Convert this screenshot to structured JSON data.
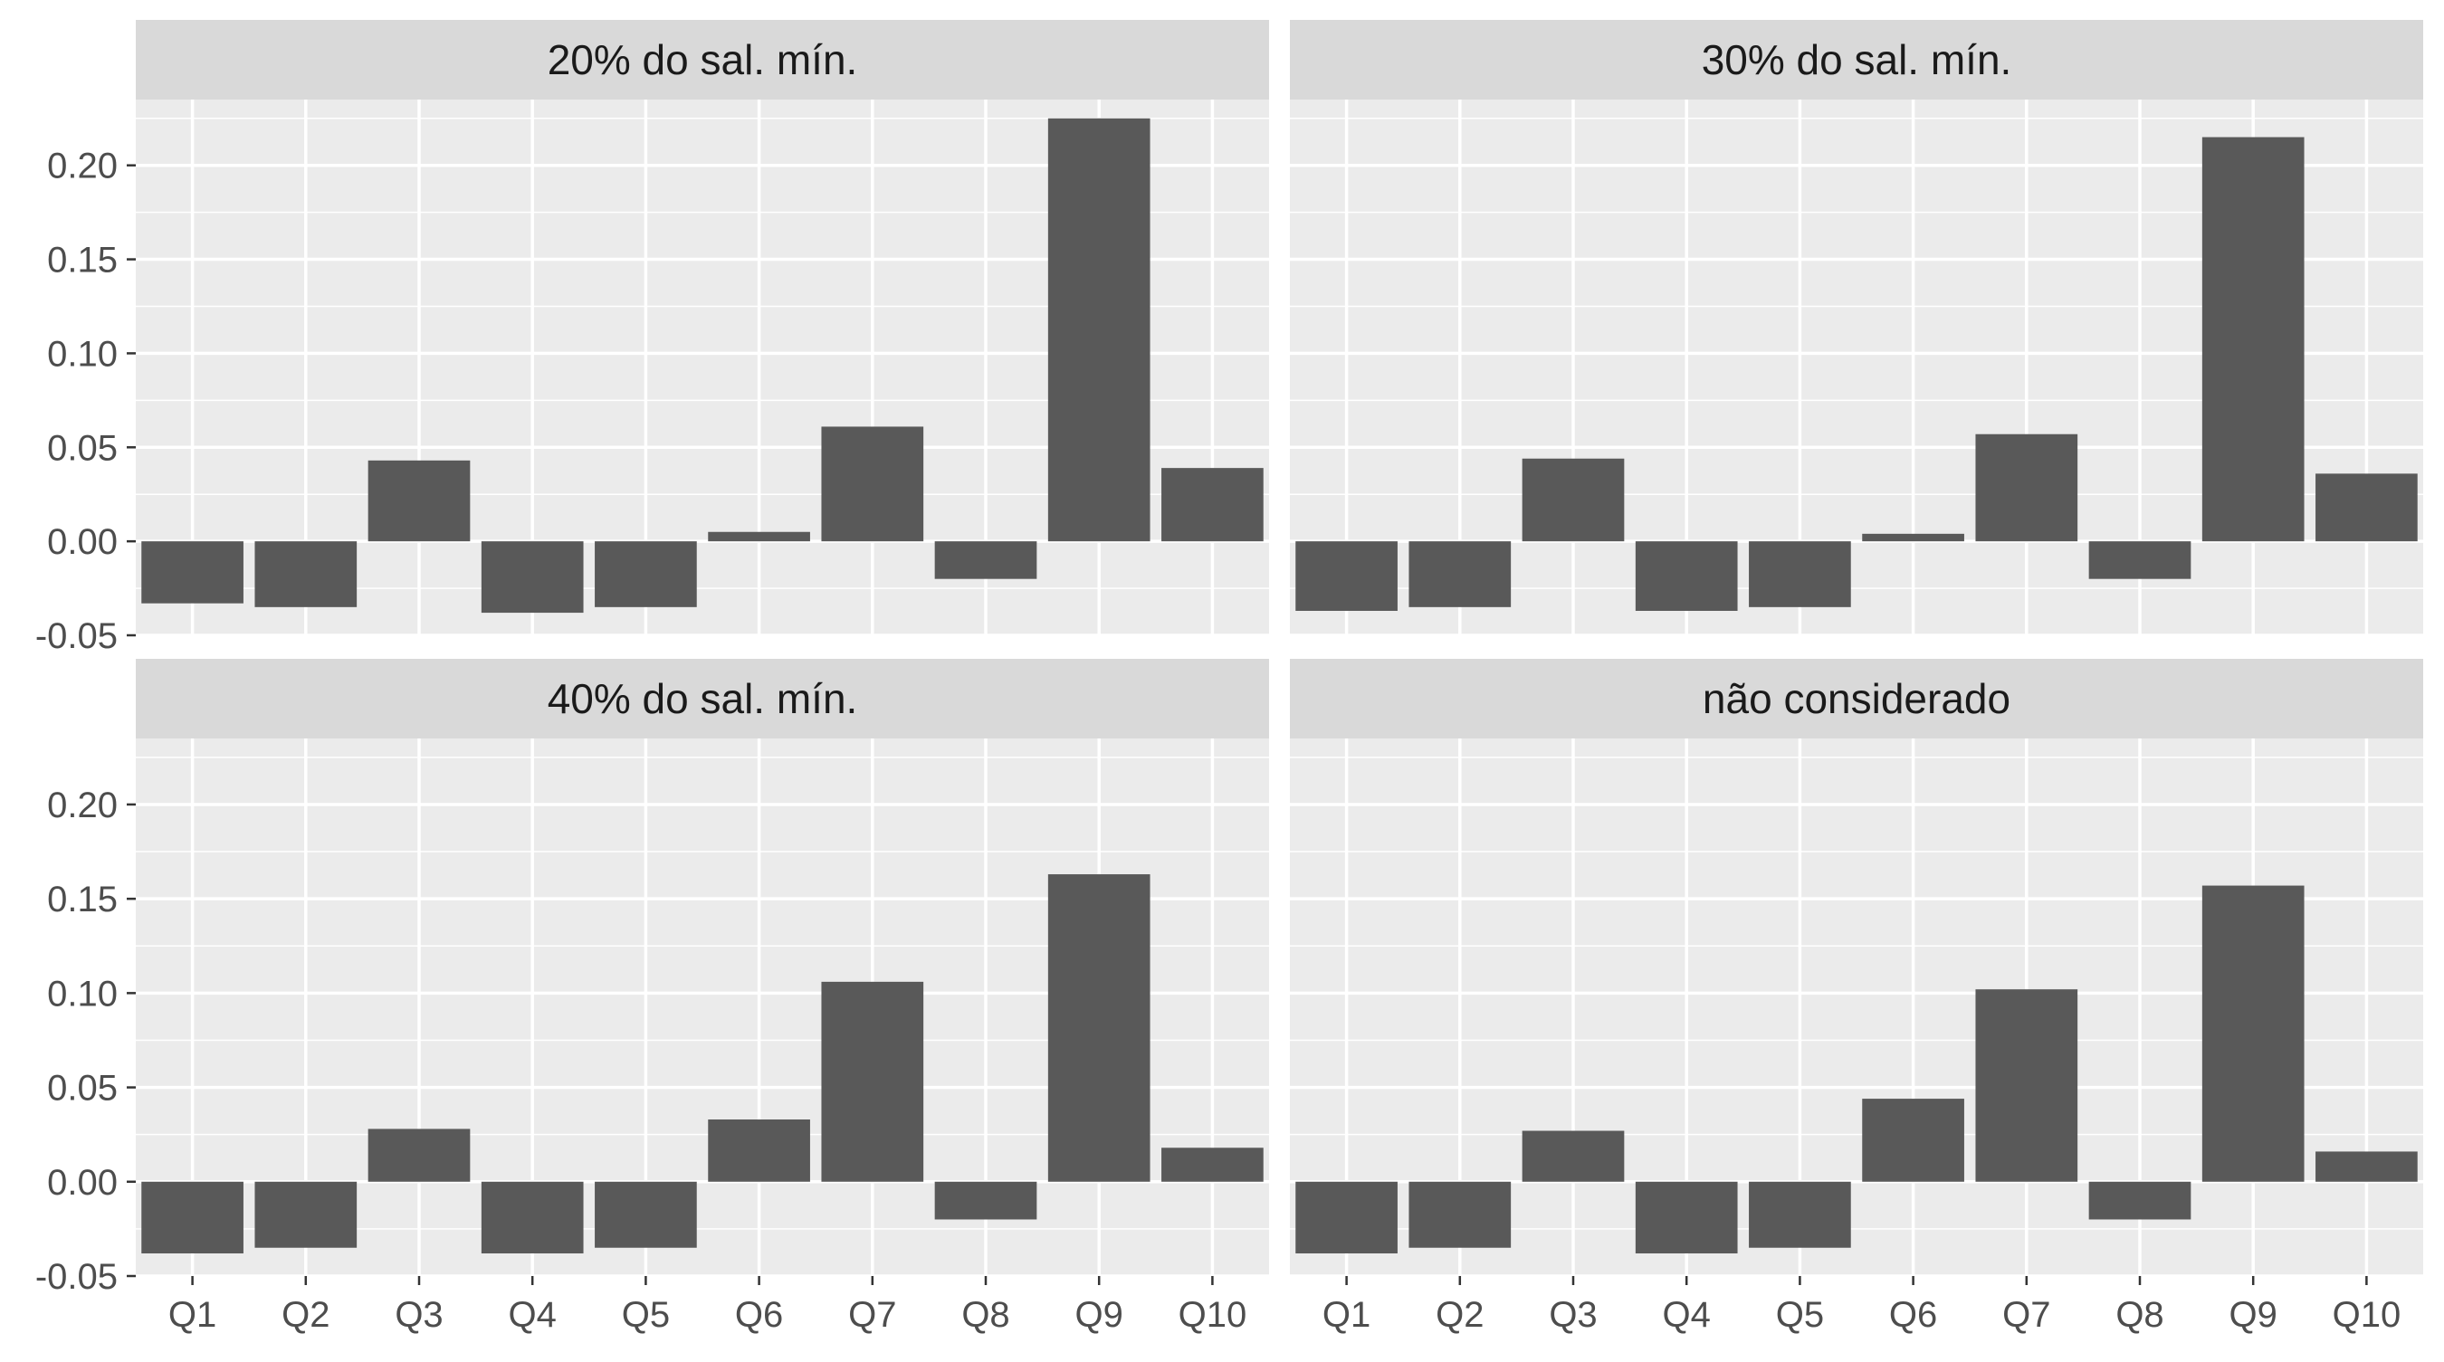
{
  "chart_data": {
    "type": "bar",
    "layout": "facet-grid 2x2",
    "background_panel": "#ebebeb",
    "strip_color": "#d9d9d9",
    "bar_color": "#595959",
    "grid": true,
    "categories": [
      "Q1",
      "Q2",
      "Q3",
      "Q4",
      "Q5",
      "Q6",
      "Q7",
      "Q8",
      "Q9",
      "Q10"
    ],
    "ylim": [
      -0.05,
      0.235
    ],
    "y_ticks": [
      "-0.05",
      "0.00",
      "0.05",
      "0.10",
      "0.15",
      "0.20"
    ],
    "y_tick_values": [
      -0.05,
      0,
      0.05,
      0.1,
      0.15,
      0.2
    ],
    "panels": [
      {
        "title": "20% do sal. mín.",
        "values": [
          -0.033,
          -0.035,
          0.043,
          -0.038,
          -0.035,
          0.005,
          0.061,
          -0.02,
          0.225,
          0.039
        ]
      },
      {
        "title": "30% do sal. mín.",
        "values": [
          -0.037,
          -0.035,
          0.044,
          -0.037,
          -0.035,
          0.004,
          0.057,
          -0.02,
          0.215,
          0.036
        ]
      },
      {
        "title": "40% do sal. mín.",
        "values": [
          -0.038,
          -0.035,
          0.028,
          -0.038,
          -0.035,
          0.033,
          0.106,
          -0.02,
          0.163,
          0.018
        ]
      },
      {
        "title": "não considerado",
        "values": [
          -0.038,
          -0.035,
          0.027,
          -0.038,
          -0.035,
          0.044,
          0.102,
          -0.02,
          0.157,
          0.016
        ]
      }
    ]
  }
}
